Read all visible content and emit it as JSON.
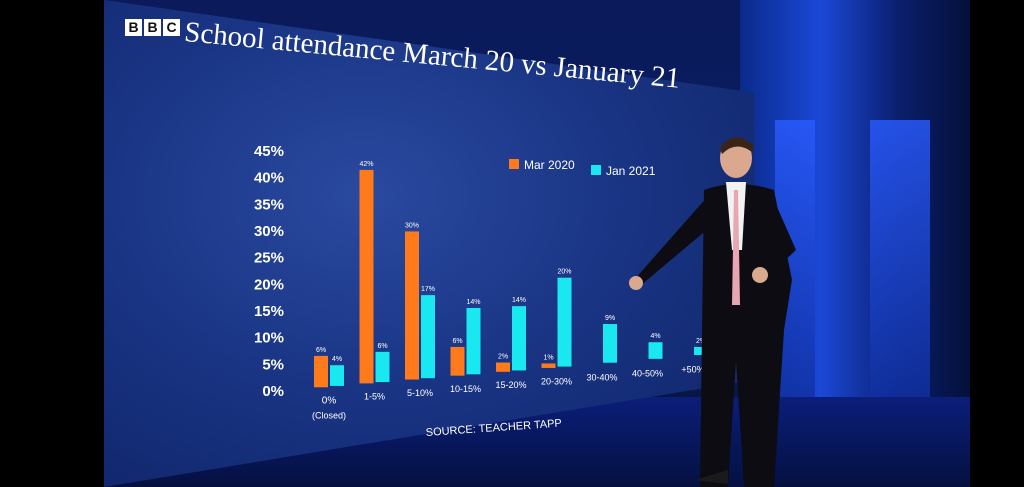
{
  "broadcaster": {
    "logo_letters": [
      "B",
      "B",
      "C"
    ]
  },
  "title": "School attendance March 20 vs January 21",
  "source": "SOURCE: TEACHER TAPP",
  "colors": {
    "mar2020": "#ff7a1a",
    "jan2021": "#19e8f0",
    "text": "#ffffff"
  },
  "chart_data": {
    "type": "bar",
    "title": "School attendance March 20 vs January 21",
    "categories": [
      "0%\n(Closed)",
      "1-5%",
      "5-10%",
      "10-15%",
      "15-20%",
      "20-30%",
      "30-40%",
      "40-50%",
      "+50%"
    ],
    "series": [
      {
        "name": "Mar 2020",
        "values": [
          6,
          42,
          30,
          6,
          2,
          1,
          null,
          null,
          null
        ],
        "labels": [
          "6%",
          "42%",
          "30%",
          "6%",
          "2%",
          "1%",
          "",
          "",
          ""
        ]
      },
      {
        "name": "Jan 2021",
        "values": [
          4,
          6,
          17,
          14,
          14,
          20,
          9,
          4,
          2
        ],
        "labels": [
          "4%",
          "6%",
          "17%",
          "14%",
          "14%",
          "20%",
          "9%",
          "4%",
          "2%"
        ]
      }
    ],
    "y_ticks": [
      "0%",
      "5%",
      "10%",
      "15%",
      "20%",
      "25%",
      "30%",
      "35%",
      "40%",
      "45%"
    ],
    "ylim": [
      0,
      45
    ],
    "legend_position": "top-right",
    "grid": false
  }
}
